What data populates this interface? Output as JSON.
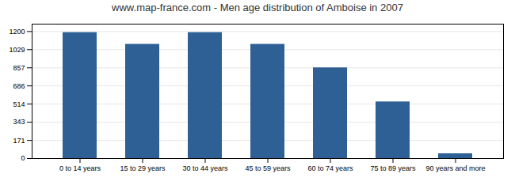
{
  "chart_data": {
    "type": "bar",
    "title": "www.map-france.com - Men age distribution of Amboise in 2007",
    "categories": [
      "0 to 14 years",
      "15 to 29 years",
      "30 to 44 years",
      "45 to 59 years",
      "60 to 74 years",
      "75 to 89 years",
      "90 years and more"
    ],
    "values": [
      1190,
      1079,
      1190,
      1079,
      857,
      535,
      45
    ],
    "color": "#2e6096",
    "ylim": [
      0,
      1270
    ],
    "yticks": [
      0,
      171,
      343,
      514,
      686,
      857,
      1029,
      1200
    ],
    "grid": true
  }
}
